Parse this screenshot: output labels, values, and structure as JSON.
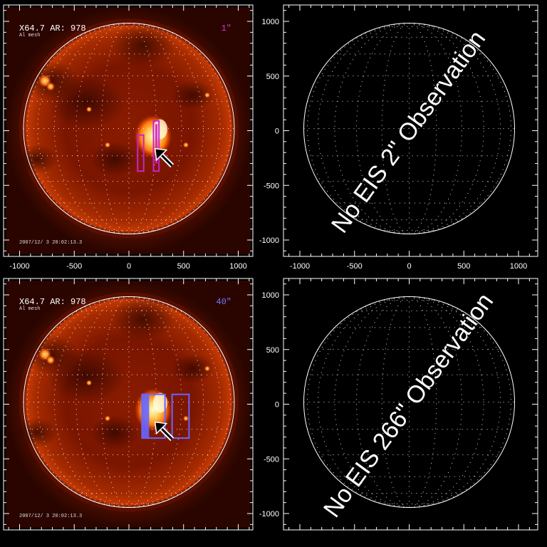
{
  "panels": [
    {
      "id": "tl",
      "type": "image",
      "header": "X64.7 AR:  978",
      "subheader": "Al mesh",
      "date": "2007/12/ 3 20:02:13.3",
      "resolution": "1\"",
      "resolution_color": "#cc33cc",
      "box_color": "#cc22cc",
      "boxes": [
        {
          "x0": 80,
          "x1": 135,
          "y0": -370,
          "y1": -40,
          "filled": false
        },
        {
          "x0": 225,
          "x1": 275,
          "y0": -370,
          "y1": 90,
          "filled": false
        }
      ],
      "bars": [
        {
          "x0": 240,
          "x1": 262,
          "y0": -300,
          "y1": 60,
          "color": "#cc22cc"
        }
      ],
      "arrow": {
        "x": 265,
        "y": -190
      },
      "x_ticks": [
        "-1000",
        "-500",
        "0",
        "500",
        "1000"
      ],
      "y_ticks": []
    },
    {
      "id": "tr",
      "type": "empty",
      "message": "No EIS 2\" Observation",
      "x_ticks": [
        "-1000",
        "-500",
        "0",
        "500",
        "1000"
      ],
      "y_ticks": [
        "1000",
        "500",
        "0",
        "-500",
        "-1000"
      ]
    },
    {
      "id": "bl",
      "type": "image",
      "header": "X64.7 AR:  978",
      "subheader": "Al mesh",
      "date": "2007/12/ 3 20:02:13.3",
      "resolution": "40\"",
      "resolution_color": "#7777ff",
      "box_color": "#6666ff",
      "boxes": [
        {
          "x0": 120,
          "x1": 330,
          "y0": -310,
          "y1": 90,
          "filled": false
        },
        {
          "x0": 395,
          "x1": 550,
          "y0": -310,
          "y1": 90,
          "filled": false
        }
      ],
      "bars": [
        {
          "x0": 120,
          "x1": 185,
          "y0": -310,
          "y1": 90,
          "color": "#6666ff"
        }
      ],
      "arrow": {
        "x": 265,
        "y": -190
      },
      "x_ticks": [],
      "y_ticks": []
    },
    {
      "id": "br",
      "type": "empty",
      "message": "No EIS 266\" Observation",
      "x_ticks": [],
      "y_ticks": [
        "1000",
        "500",
        "0",
        "-500",
        "-1000"
      ]
    }
  ]
}
